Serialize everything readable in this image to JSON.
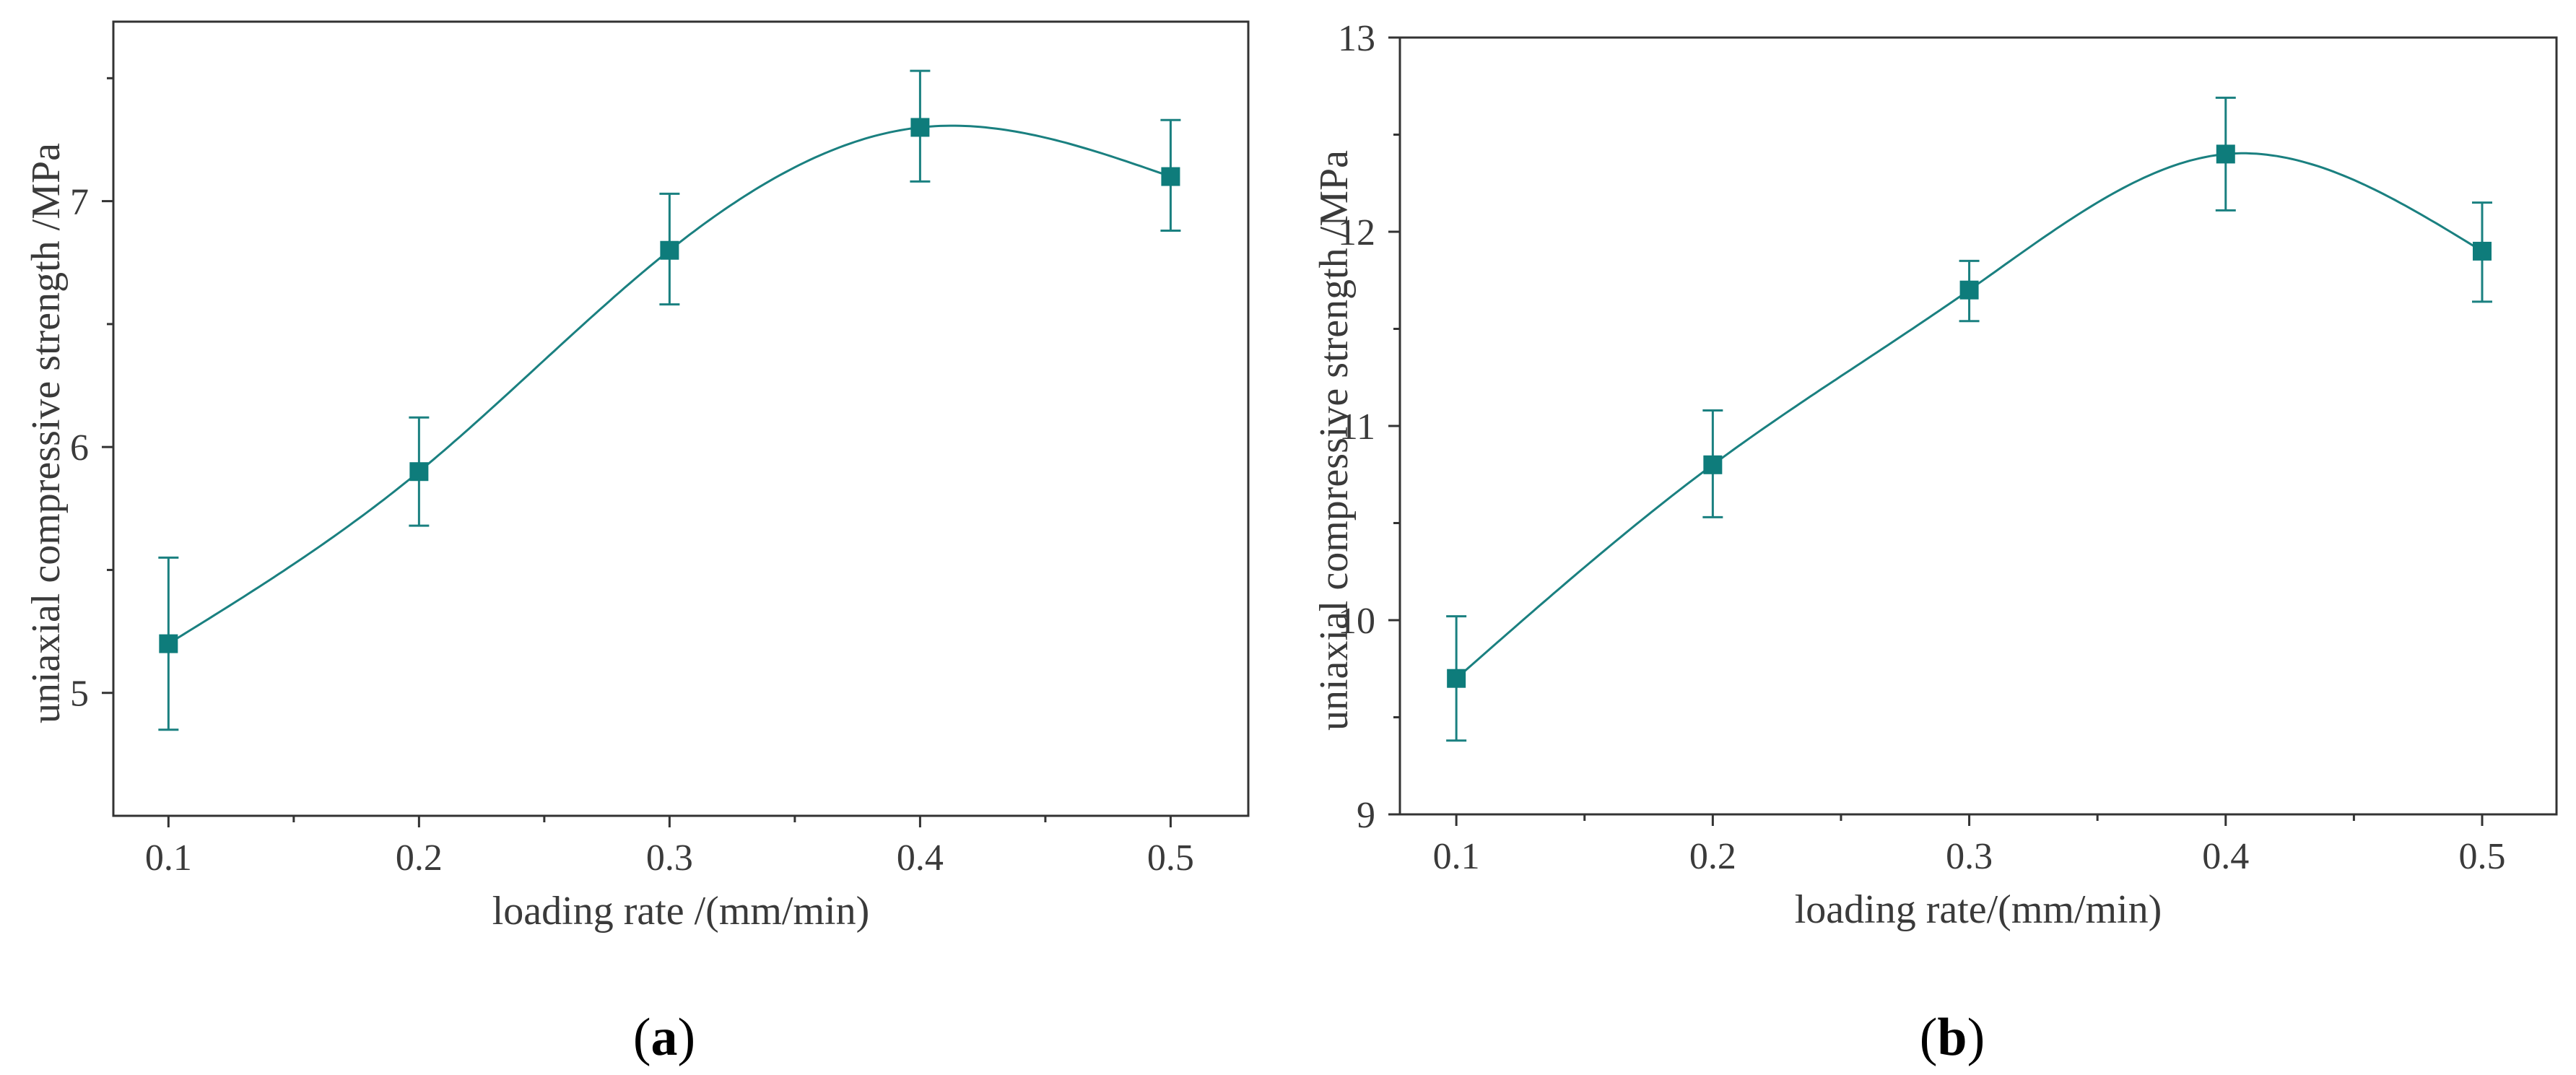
{
  "chart_data": [
    {
      "type": "line",
      "panel": "(a)",
      "panel_letter": "a",
      "xlabel": "loading rate /(mm/min)",
      "ylabel": "uniaxial compressive strength /MPa",
      "x": [
        0.1,
        0.2,
        0.3,
        0.4,
        0.5
      ],
      "xticks": [
        0.1,
        0.2,
        0.3,
        0.4,
        0.5
      ],
      "xtick_labels": [
        "0.1",
        "0.2",
        "0.3",
        "0.4",
        "0.5"
      ],
      "xlim": [
        0.078,
        0.531
      ],
      "yticks": [
        5,
        6,
        7
      ],
      "ytick_labels": [
        "5",
        "6",
        "7"
      ],
      "ylim": [
        4.5,
        7.73
      ],
      "series": [
        {
          "name": "uniaxial compressive strength",
          "values": [
            5.2,
            5.9,
            6.8,
            7.3,
            7.1
          ],
          "err_upper": [
            5.55,
            6.12,
            7.03,
            7.53,
            7.33
          ],
          "err_lower": [
            4.85,
            5.68,
            6.58,
            7.08,
            6.88
          ],
          "color": "#1a8080"
        }
      ],
      "grid": false,
      "legend": "none"
    },
    {
      "type": "line",
      "panel": "(b)",
      "panel_letter": "b",
      "xlabel": "loading rate/(mm/min)",
      "ylabel": "uniaxial compressive strength /MPa",
      "x": [
        0.1,
        0.2,
        0.3,
        0.4,
        0.5
      ],
      "xticks": [
        0.1,
        0.2,
        0.3,
        0.4,
        0.5
      ],
      "xtick_labels": [
        "0.1",
        "0.2",
        "0.3",
        "0.4",
        "0.5"
      ],
      "xlim": [
        0.078,
        0.529
      ],
      "yticks": [
        9,
        10,
        11,
        12,
        13
      ],
      "ytick_labels": [
        "9",
        "10",
        "11",
        "12",
        "13"
      ],
      "ylim": [
        9,
        13
      ],
      "series": [
        {
          "name": "uniaxial compressive strength",
          "values": [
            9.7,
            10.8,
            11.7,
            12.4,
            11.9
          ],
          "err_upper": [
            10.02,
            11.08,
            11.85,
            12.69,
            12.15
          ],
          "err_lower": [
            9.38,
            10.53,
            11.54,
            12.11,
            11.64
          ],
          "color": "#1a8080"
        }
      ],
      "grid": false,
      "legend": "none"
    }
  ]
}
